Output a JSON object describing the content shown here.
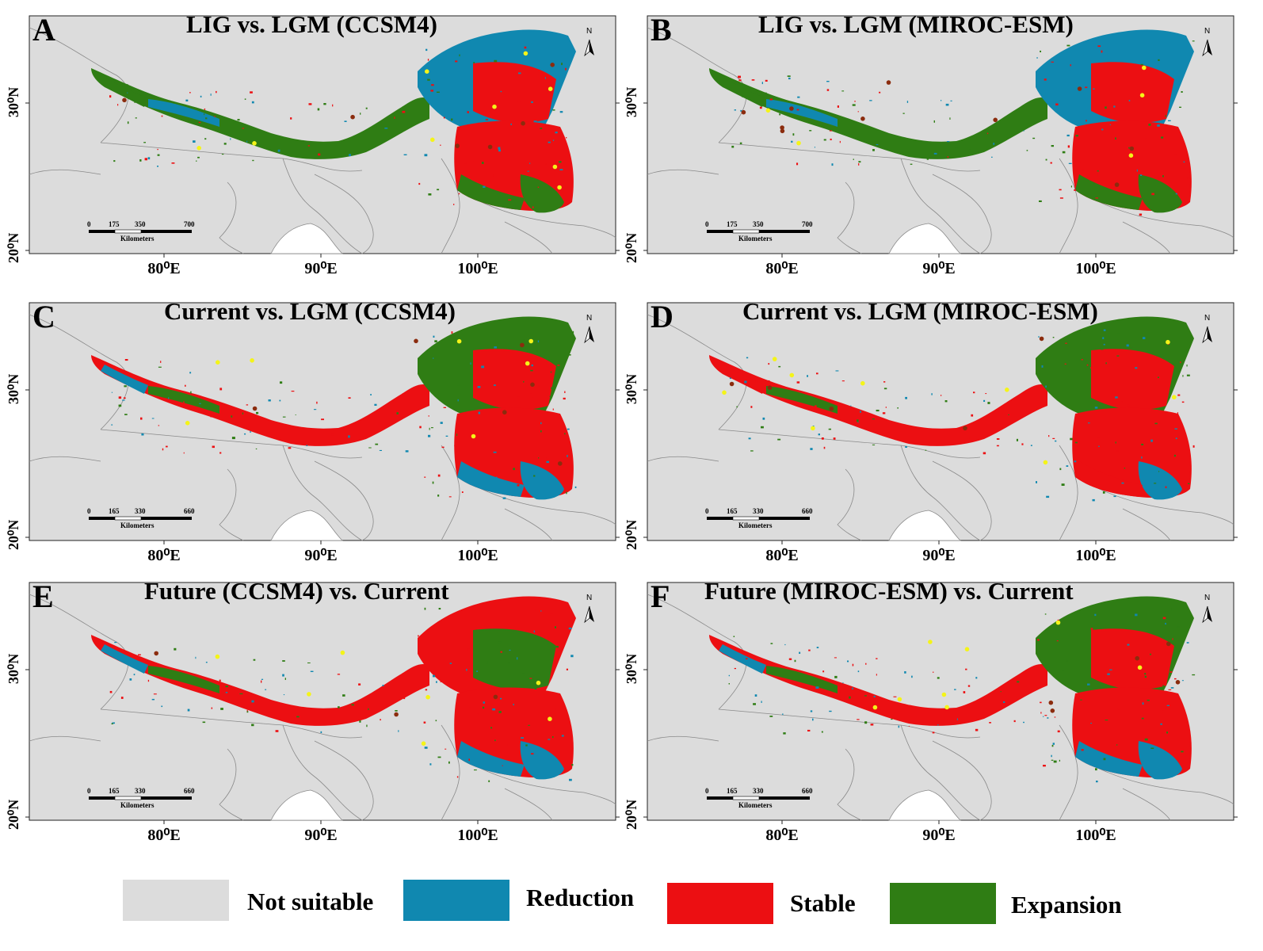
{
  "colors": {
    "not_suitable": "#dcdcdc",
    "reduction": "#1088b0",
    "stable": "#ec0f12",
    "expansion": "#2f7d14",
    "boundary": "#8a8a8a",
    "sample_yellow": "#f4f419",
    "sample_brown": "#8b2c0e"
  },
  "panels": [
    {
      "letter": "A",
      "title": "LIG vs. LGM (CCSM4)",
      "scale": {
        "ticks": [
          "0",
          "175",
          "350",
          "700"
        ],
        "unit": "Kilometers"
      }
    },
    {
      "letter": "B",
      "title": "LIG vs. LGM (MIROC-ESM)",
      "scale": {
        "ticks": [
          "0",
          "175",
          "350",
          "700"
        ],
        "unit": "Kilometers"
      }
    },
    {
      "letter": "C",
      "title": "Current vs. LGM (CCSM4)",
      "scale": {
        "ticks": [
          "0",
          "165",
          "330",
          "660"
        ],
        "unit": "Kilometers"
      }
    },
    {
      "letter": "D",
      "title": "Current vs. LGM (MIROC-ESM)",
      "scale": {
        "ticks": [
          "0",
          "165",
          "330",
          "660"
        ],
        "unit": "Kilometers"
      }
    },
    {
      "letter": "E",
      "title": "Future (CCSM4) vs. Current",
      "scale": {
        "ticks": [
          "0",
          "165",
          "330",
          "660"
        ],
        "unit": "Kilometers"
      }
    },
    {
      "letter": "F",
      "title": "Future (MIROC-ESM) vs. Current",
      "scale": {
        "ticks": [
          "0",
          "165",
          "330",
          "660"
        ],
        "unit": "Kilometers"
      }
    }
  ],
  "axes": {
    "lat_labels": [
      "30⁰N",
      "20⁰N"
    ],
    "lon_labels": [
      "80⁰E",
      "90⁰E",
      "100⁰E"
    ],
    "north_label": "N"
  },
  "legend": [
    {
      "label": "Not suitable",
      "color_key": "not_suitable"
    },
    {
      "label": "Reduction",
      "color_key": "reduction"
    },
    {
      "label": "Stable",
      "color_key": "stable"
    },
    {
      "label": "Expansion",
      "color_key": "expansion"
    }
  ]
}
